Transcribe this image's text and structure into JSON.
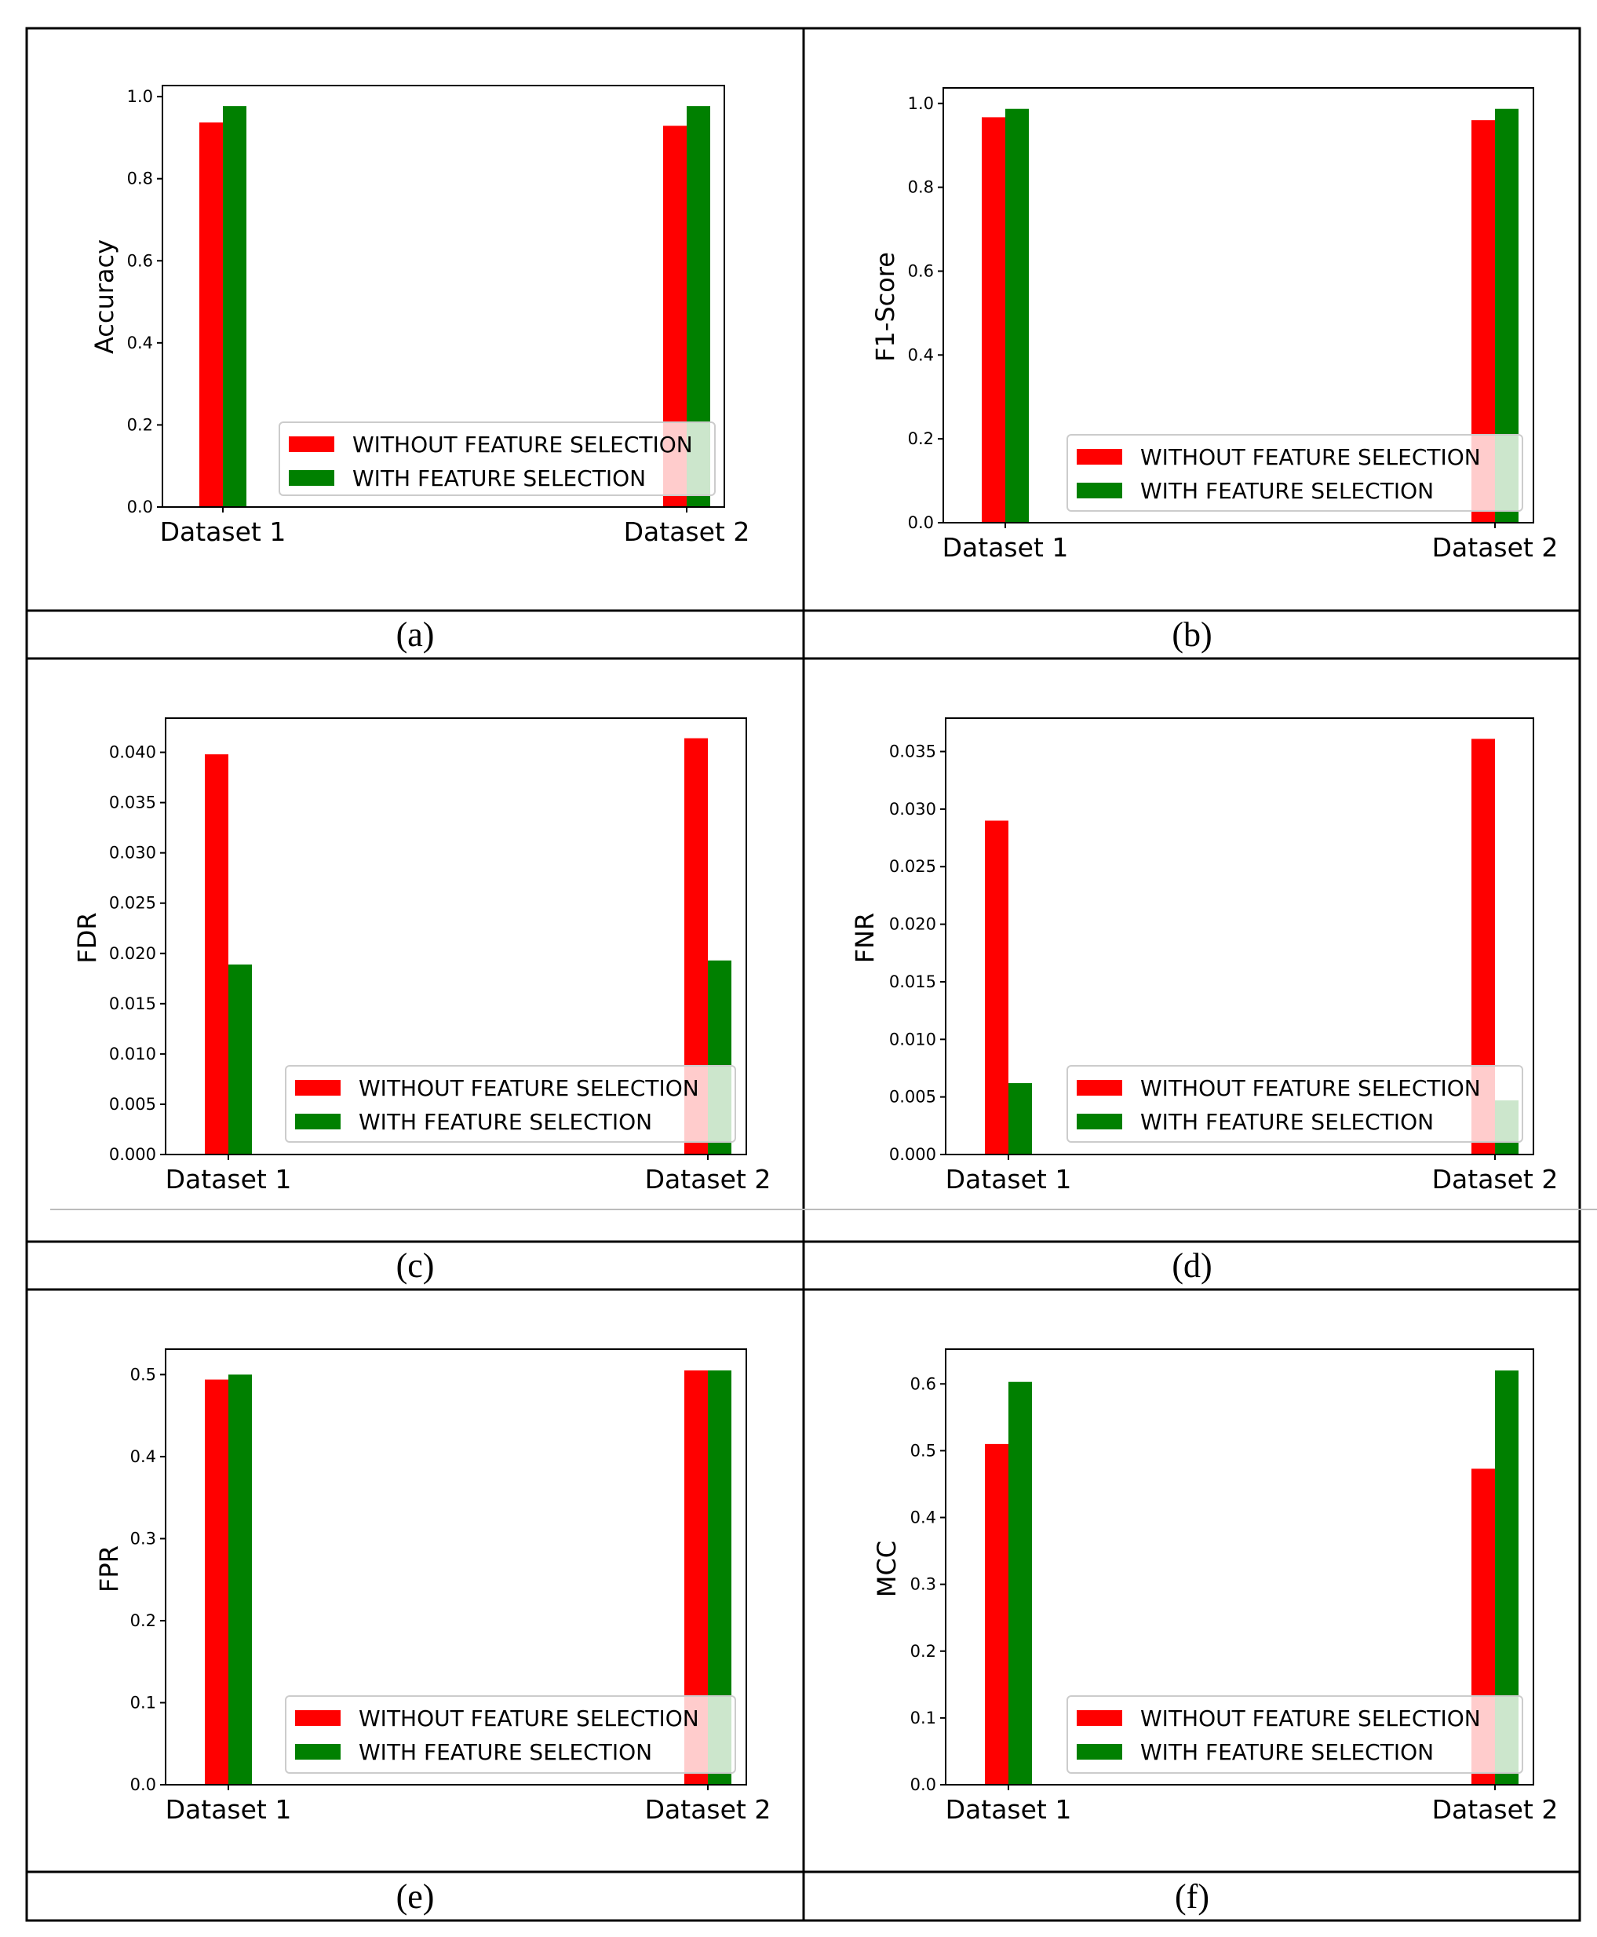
{
  "colors": {
    "without": "#ff0000",
    "with": "#008000",
    "frame": "#000000",
    "separator": "#bbbbbb"
  },
  "chart_data": [
    {
      "type": "bar",
      "panel": "(a)",
      "categories": [
        "Dataset 1",
        "Dataset 2"
      ],
      "series": [
        {
          "name": "WITHOUT FEATURE SELECTION",
          "values": [
            0.937,
            0.929
          ]
        },
        {
          "name": "WITH FEATURE SELECTION",
          "values": [
            0.977,
            0.977
          ]
        }
      ],
      "xlabel": "",
      "ylabel": "Accuracy",
      "ylim": [
        0,
        1.027
      ],
      "yticks": [
        "0.0",
        "0.2",
        "0.4",
        "0.6",
        "0.8",
        "1.0"
      ],
      "ytick_values": [
        0,
        0.2,
        0.4,
        0.6,
        0.8,
        1.0
      ],
      "legend": "lower-right",
      "grid": false
    },
    {
      "type": "bar",
      "panel": "(b)",
      "categories": [
        "Dataset 1",
        "Dataset 2"
      ],
      "series": [
        {
          "name": "WITHOUT FEATURE SELECTION",
          "values": [
            0.967,
            0.96
          ]
        },
        {
          "name": "WITH FEATURE SELECTION",
          "values": [
            0.987,
            0.987
          ]
        }
      ],
      "xlabel": "",
      "ylabel": "F1-Score",
      "ylim": [
        0,
        1.037
      ],
      "yticks": [
        "0.0",
        "0.2",
        "0.4",
        "0.6",
        "0.8",
        "1.0"
      ],
      "ytick_values": [
        0,
        0.2,
        0.4,
        0.6,
        0.8,
        1.0
      ],
      "legend": "lower-right",
      "grid": false
    },
    {
      "type": "bar",
      "panel": "(c)",
      "categories": [
        "Dataset 1",
        "Dataset 2"
      ],
      "series": [
        {
          "name": "WITHOUT FEATURE SELECTION",
          "values": [
            0.0398,
            0.0414
          ]
        },
        {
          "name": "WITH FEATURE SELECTION",
          "values": [
            0.0189,
            0.0193
          ]
        }
      ],
      "xlabel": "",
      "ylabel": "FDR",
      "ylim": [
        0,
        0.0434
      ],
      "yticks": [
        "0.000",
        "0.005",
        "0.010",
        "0.015",
        "0.020",
        "0.025",
        "0.030",
        "0.035",
        "0.040"
      ],
      "ytick_values": [
        0,
        0.005,
        0.01,
        0.015,
        0.02,
        0.025,
        0.03,
        0.035,
        0.04
      ],
      "legend": "lower-right",
      "grid": false
    },
    {
      "type": "bar",
      "panel": "(d)",
      "categories": [
        "Dataset 1",
        "Dataset 2"
      ],
      "series": [
        {
          "name": "WITHOUT FEATURE SELECTION",
          "values": [
            0.029,
            0.0361
          ]
        },
        {
          "name": "WITH FEATURE SELECTION",
          "values": [
            0.0062,
            0.0047
          ]
        }
      ],
      "xlabel": "",
      "ylabel": "FNR",
      "ylim": [
        0,
        0.0379
      ],
      "yticks": [
        "0.000",
        "0.005",
        "0.010",
        "0.015",
        "0.020",
        "0.025",
        "0.030",
        "0.035"
      ],
      "ytick_values": [
        0,
        0.005,
        0.01,
        0.015,
        0.02,
        0.025,
        0.03,
        0.035
      ],
      "legend": "lower-right",
      "grid": false
    },
    {
      "type": "bar",
      "panel": "(e)",
      "categories": [
        "Dataset 1",
        "Dataset 2"
      ],
      "series": [
        {
          "name": "WITHOUT FEATURE SELECTION",
          "values": [
            0.494,
            0.505
          ]
        },
        {
          "name": "WITH FEATURE SELECTION",
          "values": [
            0.5,
            0.505
          ]
        }
      ],
      "xlabel": "",
      "ylabel": "FPR",
      "ylim": [
        0,
        0.531
      ],
      "yticks": [
        "0.0",
        "0.1",
        "0.2",
        "0.3",
        "0.4",
        "0.5"
      ],
      "ytick_values": [
        0,
        0.1,
        0.2,
        0.3,
        0.4,
        0.5
      ],
      "legend": "lower-right",
      "grid": false
    },
    {
      "type": "bar",
      "panel": "(f)",
      "categories": [
        "Dataset 1",
        "Dataset 2"
      ],
      "series": [
        {
          "name": "WITHOUT FEATURE SELECTION",
          "values": [
            0.51,
            0.473
          ]
        },
        {
          "name": "WITH FEATURE SELECTION",
          "values": [
            0.603,
            0.62
          ]
        }
      ],
      "xlabel": "",
      "ylabel": "MCC",
      "ylim": [
        0,
        0.652
      ],
      "yticks": [
        "0.0",
        "0.1",
        "0.2",
        "0.3",
        "0.4",
        "0.5",
        "0.6"
      ],
      "ytick_values": [
        0,
        0.1,
        0.2,
        0.3,
        0.4,
        0.5,
        0.6
      ],
      "legend": "lower-right",
      "grid": false
    }
  ]
}
